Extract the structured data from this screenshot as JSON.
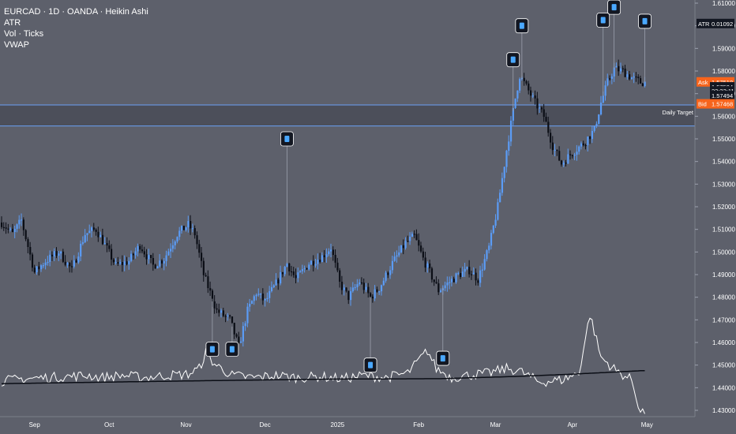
{
  "header": {
    "symbol_line": "EURCAD · 1D · OANDA · Heikin Ashi",
    "indicators": [
      "ATR",
      "Vol · Ticks",
      "VWAP"
    ]
  },
  "price_labels": {
    "atr": {
      "name": "ATR",
      "value": "0.01092"
    },
    "ask": {
      "name": "Ask",
      "value": "1.57518"
    },
    "last": {
      "value": "1.57504",
      "countdown": "22:22:11"
    },
    "bid": {
      "name": "Bid",
      "value": "1.57494"
    },
    "bid_tag": "1.57468",
    "zone_label": "Daily Target"
  },
  "colors": {
    "background": "#5d606b",
    "bull": "#5b9cf6",
    "bear": "#0b0e16",
    "line": "#ffffff",
    "vwap": "#0b0e16",
    "zone_line": "#6a9ff5",
    "ask": "#f7641c",
    "bid": "#f7641c",
    "marker_box": "#131722",
    "marker_dot": "#4aa8ff"
  },
  "chart_data": {
    "type": "candlestick",
    "style": "Heikin Ashi",
    "y_axis": {
      "ticks": [
        "1.61000",
        "1.60000",
        "1.59000",
        "1.58000",
        "1.57000",
        "1.56000",
        "1.55000",
        "1.54000",
        "1.53000",
        "1.52000",
        "1.51000",
        "1.50000",
        "1.49000",
        "1.48000",
        "1.47000",
        "1.46000",
        "1.45000",
        "1.44000",
        "1.43000"
      ],
      "ylim": [
        1.425,
        1.612
      ]
    },
    "x_axis": {
      "ticks": [
        "Sep",
        "Oct",
        "Nov",
        "Dec",
        "2025",
        "Feb",
        "Mar",
        "Apr",
        "May"
      ]
    },
    "zone": {
      "upper": 1.565,
      "lower": 1.5557,
      "label": "Daily Target"
    },
    "anchors": [
      [
        0,
        1.513
      ],
      [
        5,
        1.508
      ],
      [
        9,
        1.514
      ],
      [
        15,
        1.491
      ],
      [
        20,
        1.496
      ],
      [
        26,
        1.5
      ],
      [
        32,
        1.492
      ],
      [
        38,
        1.508
      ],
      [
        43,
        1.51
      ],
      [
        46,
        1.505
      ],
      [
        52,
        1.494
      ],
      [
        58,
        1.496
      ],
      [
        63,
        1.503
      ],
      [
        69,
        1.494
      ],
      [
        74,
        1.497
      ],
      [
        80,
        1.508
      ],
      [
        85,
        1.512
      ],
      [
        88,
        1.508
      ],
      [
        92,
        1.49
      ],
      [
        98,
        1.474
      ],
      [
        104,
        1.47
      ],
      [
        108,
        1.458
      ],
      [
        112,
        1.474
      ],
      [
        116,
        1.482
      ],
      [
        120,
        1.478
      ],
      [
        125,
        1.486
      ],
      [
        130,
        1.495
      ],
      [
        134,
        1.488
      ],
      [
        140,
        1.495
      ],
      [
        146,
        1.498
      ],
      [
        150,
        1.502
      ],
      [
        154,
        1.486
      ],
      [
        158,
        1.48
      ],
      [
        163,
        1.487
      ],
      [
        168,
        1.48
      ],
      [
        172,
        1.484
      ],
      [
        178,
        1.495
      ],
      [
        184,
        1.504
      ],
      [
        188,
        1.507
      ],
      [
        192,
        1.497
      ],
      [
        196,
        1.489
      ],
      [
        199,
        1.483
      ],
      [
        203,
        1.486
      ],
      [
        208,
        1.49
      ],
      [
        213,
        1.492
      ],
      [
        217,
        1.488
      ],
      [
        222,
        1.502
      ],
      [
        226,
        1.52
      ],
      [
        230,
        1.545
      ],
      [
        234,
        1.568
      ],
      [
        236,
        1.578
      ],
      [
        239,
        1.573
      ],
      [
        243,
        1.566
      ],
      [
        247,
        1.56
      ],
      [
        251,
        1.547
      ],
      [
        255,
        1.539
      ],
      [
        260,
        1.544
      ],
      [
        265,
        1.548
      ],
      [
        270,
        1.554
      ],
      [
        273,
        1.566
      ],
      [
        276,
        1.575
      ],
      [
        279,
        1.581
      ],
      [
        283,
        1.58
      ],
      [
        287,
        1.577
      ],
      [
        291,
        1.575
      ]
    ],
    "volume_anchors": [
      [
        0,
        1.4425
      ],
      [
        10,
        1.4435
      ],
      [
        20,
        1.444
      ],
      [
        30,
        1.4445
      ],
      [
        40,
        1.445
      ],
      [
        45,
        1.444
      ],
      [
        55,
        1.445
      ],
      [
        65,
        1.444
      ],
      [
        75,
        1.445
      ],
      [
        85,
        1.4455
      ],
      [
        90,
        1.448
      ],
      [
        93,
        1.455
      ],
      [
        97,
        1.45
      ],
      [
        105,
        1.445
      ],
      [
        115,
        1.444
      ],
      [
        125,
        1.445
      ],
      [
        135,
        1.444
      ],
      [
        145,
        1.4445
      ],
      [
        155,
        1.4435
      ],
      [
        165,
        1.445
      ],
      [
        175,
        1.444
      ],
      [
        185,
        1.446
      ],
      [
        194,
        1.456
      ],
      [
        198,
        1.448
      ],
      [
        205,
        1.444
      ],
      [
        212,
        1.445
      ],
      [
        222,
        1.446
      ],
      [
        230,
        1.448
      ],
      [
        236,
        1.447
      ],
      [
        245,
        1.442
      ],
      [
        255,
        1.443
      ],
      [
        263,
        1.446
      ],
      [
        268,
        1.472
      ],
      [
        273,
        1.453
      ],
      [
        280,
        1.447
      ],
      [
        287,
        1.443
      ],
      [
        291,
        1.429
      ]
    ],
    "vwap_anchors": [
      [
        0,
        1.4418
      ],
      [
        50,
        1.4425
      ],
      [
        100,
        1.4432
      ],
      [
        150,
        1.4438
      ],
      [
        200,
        1.444
      ],
      [
        235,
        1.445
      ],
      [
        260,
        1.446
      ],
      [
        291,
        1.4475
      ]
    ],
    "markers": [
      {
        "index": 96,
        "price": 1.457
      },
      {
        "index": 105,
        "price": 1.457
      },
      {
        "index": 130,
        "price": 1.55
      },
      {
        "index": 168,
        "price": 1.45
      },
      {
        "index": 201,
        "price": 1.453
      },
      {
        "index": 233,
        "price": 1.585
      },
      {
        "index": 237,
        "price": 1.6
      },
      {
        "index": 274,
        "price": 1.6025
      },
      {
        "index": 279,
        "price": 1.6082
      },
      {
        "index": 293,
        "price": 1.602
      }
    ]
  }
}
